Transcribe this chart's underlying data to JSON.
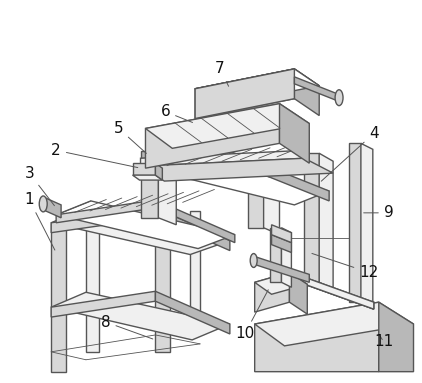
{
  "bg_color": "#ffffff",
  "line_color": "#555555",
  "fill_white": "#ffffff",
  "fill_light": "#f0f0f0",
  "fill_mid": "#d8d8d8",
  "fill_dark": "#b8b8b8",
  "fill_darker": "#989898",
  "label_color": "#111111",
  "label_fontsize": 11,
  "figsize": [
    4.22,
    3.83
  ],
  "dpi": 100
}
